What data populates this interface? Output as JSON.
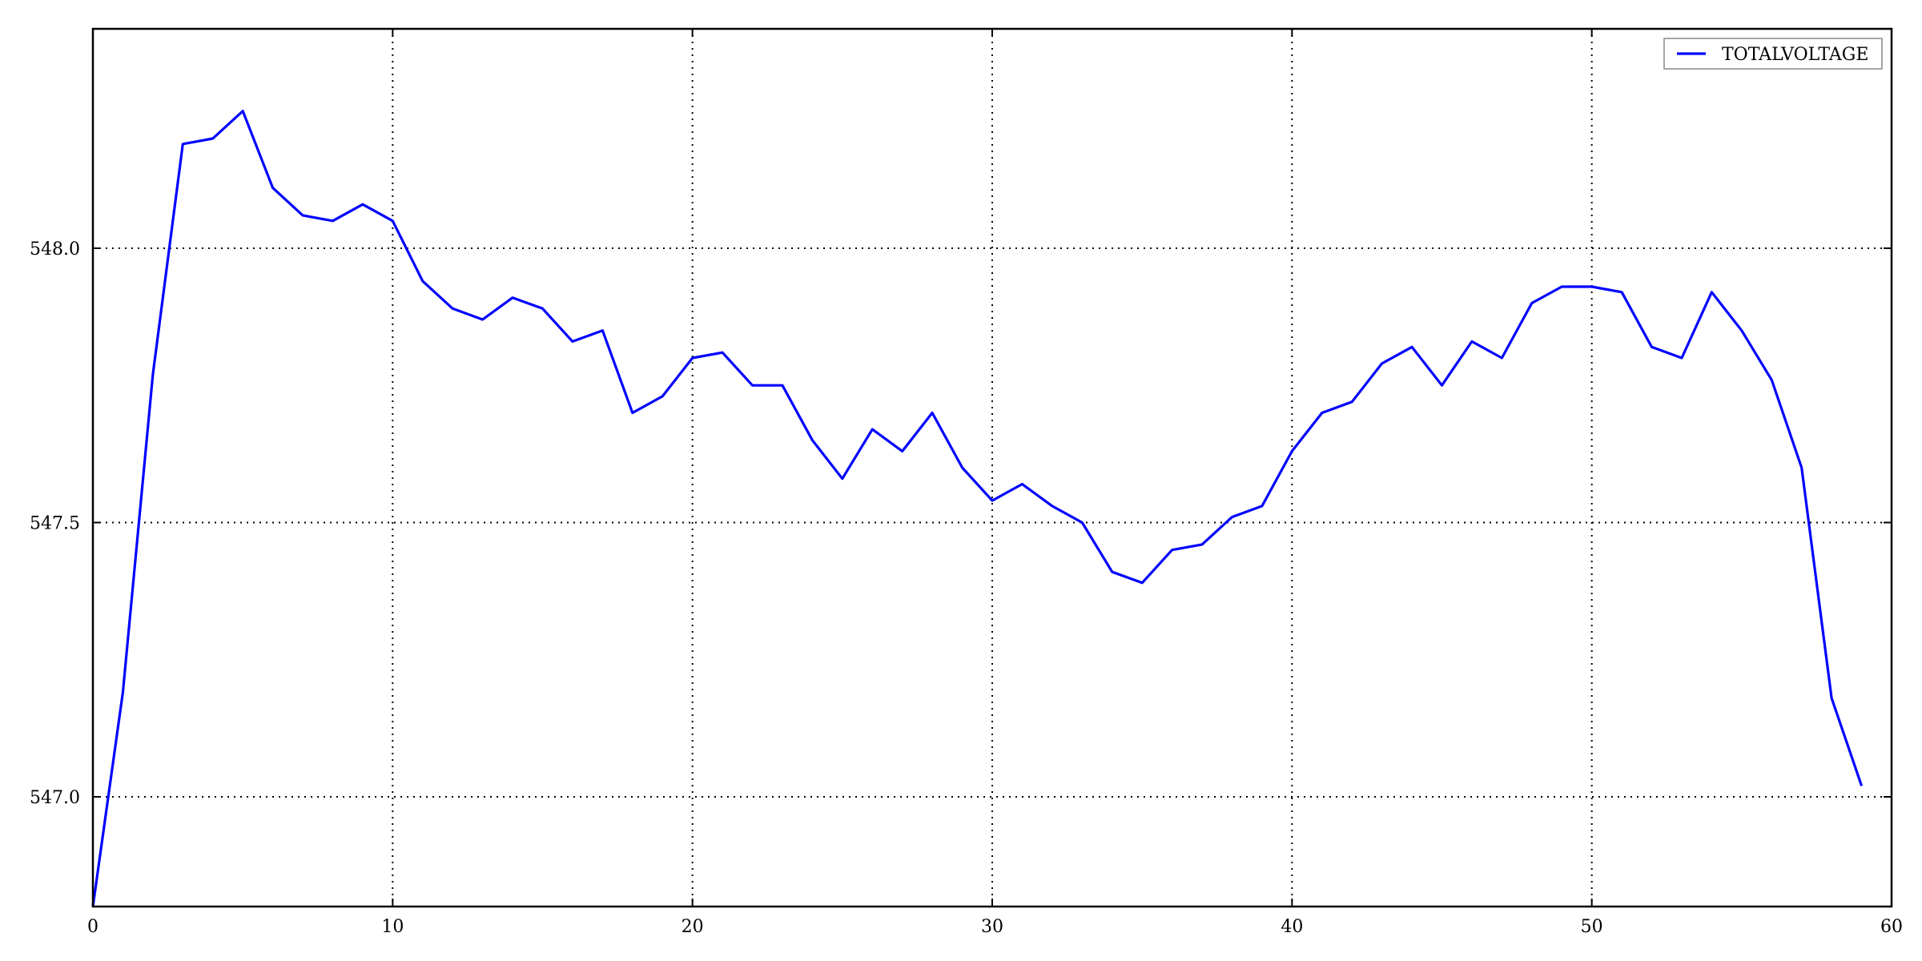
{
  "chart_data": {
    "type": "line",
    "title": "",
    "xlabel": "",
    "ylabel": "",
    "xlim": [
      0,
      60
    ],
    "ylim": [
      546.8,
      548.4
    ],
    "grid": true,
    "legend_position": "top-right",
    "x_ticks": [
      {
        "value": 0,
        "label": "0"
      },
      {
        "value": 10,
        "label": "10"
      },
      {
        "value": 20,
        "label": "20"
      },
      {
        "value": 30,
        "label": "30"
      },
      {
        "value": 40,
        "label": "40"
      },
      {
        "value": 50,
        "label": "50"
      },
      {
        "value": 60,
        "label": "60"
      }
    ],
    "y_ticks": [
      {
        "value": 547.0,
        "label": "547.0"
      },
      {
        "value": 547.5,
        "label": "547.5"
      },
      {
        "value": 548.0,
        "label": "548.0"
      }
    ],
    "series": [
      {
        "name": "TOTALVOLTAGE",
        "color": "#0000ff",
        "x": [
          0,
          1,
          2,
          3,
          4,
          5,
          6,
          7,
          8,
          9,
          10,
          11,
          12,
          13,
          14,
          15,
          16,
          17,
          18,
          19,
          20,
          21,
          22,
          23,
          24,
          25,
          26,
          27,
          28,
          29,
          30,
          31,
          32,
          33,
          34,
          35,
          36,
          37,
          38,
          39,
          40,
          41,
          42,
          43,
          44,
          45,
          46,
          47,
          48,
          49,
          50,
          51,
          52,
          53,
          54,
          55,
          56,
          57,
          58,
          59
        ],
        "y": [
          546.8,
          547.19,
          547.77,
          548.19,
          548.2,
          548.25,
          548.11,
          548.06,
          548.05,
          548.08,
          548.05,
          547.94,
          547.89,
          547.87,
          547.91,
          547.89,
          547.83,
          547.85,
          547.7,
          547.73,
          547.8,
          547.81,
          547.75,
          547.75,
          547.65,
          547.58,
          547.67,
          547.63,
          547.7,
          547.6,
          547.54,
          547.57,
          547.53,
          547.5,
          547.41,
          547.39,
          547.45,
          547.46,
          547.51,
          547.53,
          547.63,
          547.7,
          547.72,
          547.79,
          547.82,
          547.75,
          547.83,
          547.8,
          547.9,
          547.93,
          547.93,
          547.92,
          547.82,
          547.8,
          547.92,
          547.85,
          547.76,
          547.6,
          547.18,
          547.02
        ]
      }
    ]
  }
}
